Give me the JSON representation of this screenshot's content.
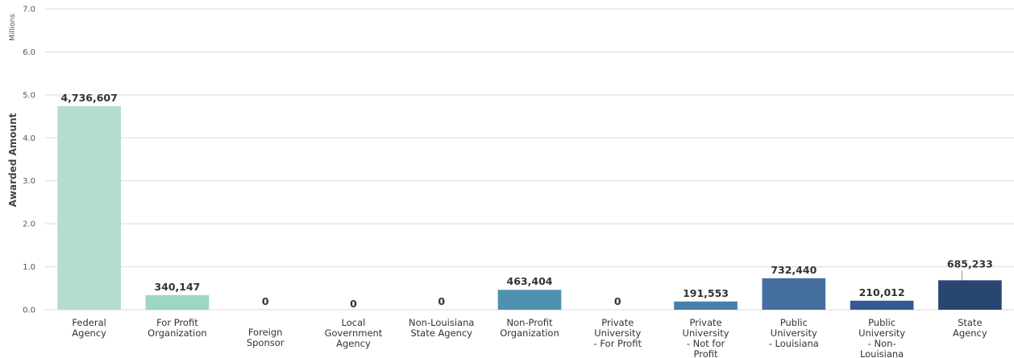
{
  "chart_data": {
    "type": "bar",
    "ylabel": "Awarded Amount",
    "unit_label": "Millions",
    "ylim": [
      0,
      7
    ],
    "y_ticks": [
      "0.0",
      "1.0",
      "2.0",
      "3.0",
      "4.0",
      "5.0",
      "6.0",
      "7.0"
    ],
    "grid": true,
    "categories": [
      [
        "Federal",
        "Agency"
      ],
      [
        "For Profit",
        "Organization"
      ],
      [
        "Foreign",
        "Sponsor"
      ],
      [
        "Local",
        "Government",
        "Agency"
      ],
      [
        "Non-Louisiana",
        "State Agency"
      ],
      [
        "Non-Profit",
        "Organization"
      ],
      [
        "Private",
        "University",
        "- For Profit"
      ],
      [
        "Private",
        "University",
        "- Not for",
        "Profit"
      ],
      [
        "Public",
        "University",
        "- Louisiana"
      ],
      [
        "Public",
        "University",
        "- Non-",
        "Louisiana"
      ],
      [
        "State",
        "Agency"
      ]
    ],
    "values": [
      4736607,
      340147,
      0,
      0,
      0,
      463404,
      0,
      191553,
      732440,
      210012,
      685233
    ],
    "data_labels": [
      "4,736,607",
      "340,147",
      "0",
      "0",
      "0",
      "463,404",
      "0",
      "191,553",
      "732,440",
      "210,012",
      "685,233"
    ],
    "colors": [
      "#b2ddd0",
      "#9dd5c6",
      "#8fcbbf",
      "#7fbfbd",
      "#6aafbd",
      "#4f92b0",
      "#4d8ab0",
      "#4680ab",
      "#456f9f",
      "#355993",
      "#284670"
    ]
  }
}
